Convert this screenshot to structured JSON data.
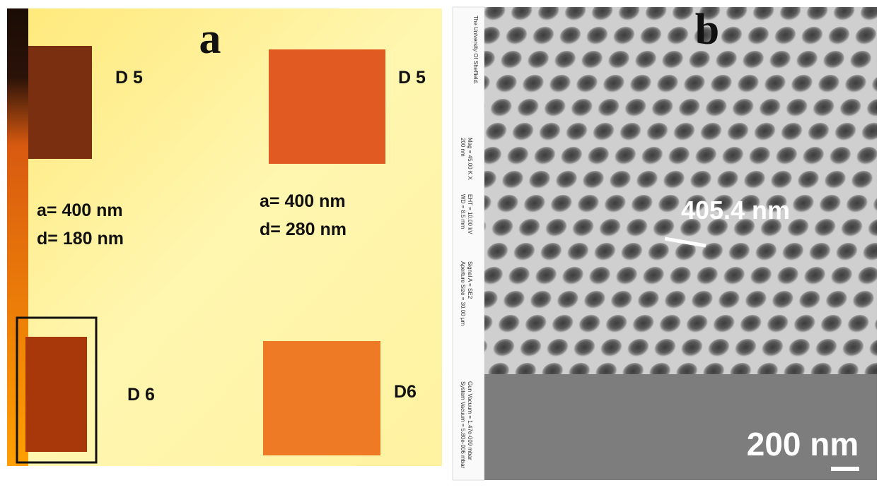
{
  "panel_a": {
    "label": "a",
    "top_left": "D 5",
    "top_right": "D 5",
    "left_params": [
      "a= 400 nm",
      "d= 180 nm"
    ],
    "right_params": [
      "a= 400 nm",
      "d= 280 nm"
    ],
    "bottom_left": "D 6",
    "bottom_right": "D6"
  },
  "panel_b": {
    "label": "b",
    "measurement": "405.4 nm",
    "scale_bar": "200 nm",
    "info": [
      "Mag = 45.00 K X",
      "200 nm",
      "EHT = 10.00 kV",
      "WD = 8.5 mm",
      "Signal A = SE2",
      "Aperture Size = 30.00 µm",
      "Gun Vacuum = 1.47e-009 mbar",
      "System Vacuum = 5.80e-006 mbar"
    ],
    "logo": "The University Of Sheffield."
  }
}
